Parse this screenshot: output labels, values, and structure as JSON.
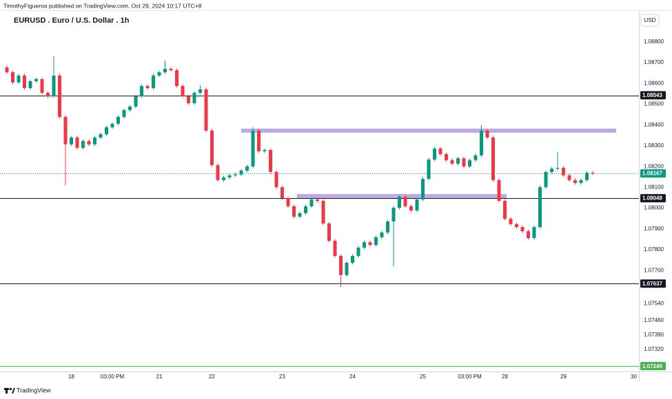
{
  "chart_data": {
    "type": "candlestick",
    "attribution": "TimothyFigueroa published on TradingView.com, Oct 29, 2024 10:17 UTC+8",
    "title": "EURUSD . Euro / U.S. Dollar . 1h",
    "currency": "USD",
    "watermark": "TradingView",
    "up_color": "#089981",
    "down_color": "#f23645",
    "grid": false,
    "categories": [
      null,
      null,
      null,
      null,
      null,
      null,
      null,
      null,
      null,
      null,
      null,
      "18",
      null,
      null,
      null,
      null,
      null,
      null,
      "03:00 PM",
      null,
      null,
      null,
      null,
      null,
      null,
      null,
      "21",
      null,
      null,
      null,
      null,
      null,
      null,
      null,
      null,
      "22",
      null,
      null,
      null,
      null,
      null,
      null,
      null,
      null,
      null,
      null,
      null,
      "23",
      null,
      null,
      null,
      null,
      null,
      null,
      null,
      null,
      null,
      null,
      null,
      "24",
      null,
      null,
      null,
      null,
      null,
      null,
      null,
      null,
      null,
      null,
      null,
      "25",
      null,
      null,
      null,
      null,
      null,
      null,
      null,
      "03:00 PM",
      null,
      null,
      null,
      null,
      null,
      "28",
      null,
      null,
      null,
      null,
      null,
      null,
      null,
      null,
      null,
      "29",
      null,
      null,
      null,
      null,
      null,
      null,
      null,
      null,
      null,
      null,
      null,
      "30"
    ],
    "open": [
      1.08677,
      1.08654,
      1.08605,
      1.08638,
      1.08578,
      1.08611,
      1.08621,
      1.08555,
      1.08538,
      1.08638,
      1.08439,
      1.08307,
      1.0834,
      1.0829,
      1.08323,
      1.08307,
      1.0834,
      1.08356,
      1.08389,
      1.08406,
      1.08439,
      1.08472,
      1.08489,
      1.08538,
      1.08588,
      1.08578,
      1.08638,
      1.08654,
      1.08671,
      1.08664,
      1.08588,
      1.08538,
      1.08505,
      1.08555,
      1.08572,
      1.08373,
      1.08207,
      1.08135,
      1.08148,
      1.08158,
      1.08162,
      1.08181,
      1.08201,
      1.08373,
      1.08274,
      1.0828,
      1.08174,
      1.08101,
      1.08048,
      1.08009,
      1.07959,
      1.07976,
      1.08009,
      1.08042,
      1.08035,
      1.07926,
      1.07843,
      1.0777,
      1.07678,
      1.07737,
      1.0777,
      1.0781,
      1.07836,
      1.07823,
      1.0786,
      1.07883,
      1.07936,
      1.08002,
      1.08055,
      1.08009,
      1.07989,
      1.08042,
      1.08141,
      1.08234,
      1.08287,
      1.0826,
      1.08231,
      1.08214,
      1.0824,
      1.08201,
      1.08231,
      1.08254,
      1.08373,
      1.0834,
      1.08135,
      1.08035,
      1.07949,
      1.07923,
      1.07909,
      1.07889,
      1.07856,
      1.07909,
      1.08101,
      1.08174,
      1.0819,
      1.08194,
      1.08158,
      1.08135,
      1.08121,
      1.08135,
      1.0817,
      null,
      null,
      null,
      null,
      null,
      null,
      null
    ],
    "high": [
      1.08685,
      1.08662,
      1.08646,
      1.08646,
      1.08619,
      1.08629,
      1.08629,
      1.08563,
      1.0873,
      1.08646,
      1.08447,
      1.08348,
      1.08348,
      1.08331,
      1.08331,
      1.08348,
      1.08364,
      1.08397,
      1.08414,
      1.08447,
      1.0848,
      1.08497,
      1.08546,
      1.08596,
      1.08596,
      1.08646,
      1.08662,
      1.0871,
      1.08679,
      1.08672,
      1.08596,
      1.08546,
      1.08563,
      1.0859,
      1.0858,
      1.08381,
      1.08215,
      1.08156,
      1.08166,
      1.0817,
      1.08189,
      1.08209,
      1.0839,
      1.08381,
      1.08288,
      1.08288,
      1.08182,
      1.08109,
      1.08056,
      1.08017,
      1.07984,
      1.08017,
      1.0805,
      1.0805,
      1.08043,
      1.07934,
      1.07851,
      1.07778,
      1.07745,
      1.07778,
      1.07818,
      1.07844,
      1.07844,
      1.07868,
      1.07891,
      1.07944,
      1.0801,
      1.08063,
      1.08063,
      1.08017,
      1.0805,
      1.08149,
      1.08242,
      1.08295,
      1.08295,
      1.08268,
      1.08239,
      1.08248,
      1.08248,
      1.08239,
      1.08262,
      1.084,
      1.08381,
      1.08348,
      1.08143,
      1.08043,
      1.07957,
      1.07931,
      1.07917,
      1.07897,
      1.07917,
      1.08109,
      1.08182,
      1.08198,
      1.0827,
      1.08202,
      1.08166,
      1.08143,
      1.08143,
      1.08178,
      1.08178,
      null,
      null,
      null,
      null,
      null,
      null,
      null
    ],
    "low": [
      1.08646,
      1.08597,
      1.08597,
      1.0857,
      1.0857,
      1.08603,
      1.08547,
      1.0853,
      1.0853,
      1.08431,
      1.0811,
      1.08299,
      1.08282,
      1.08282,
      1.08299,
      1.08299,
      1.08332,
      1.08348,
      1.08381,
      1.08398,
      1.08431,
      1.08464,
      1.08481,
      1.0853,
      1.0857,
      1.0857,
      1.0863,
      1.08646,
      1.08656,
      1.0858,
      1.0853,
      1.08497,
      1.08497,
      1.08547,
      1.08365,
      1.08199,
      1.08127,
      1.08127,
      1.0814,
      1.0815,
      1.08154,
      1.08173,
      1.08193,
      1.08266,
      1.08266,
      1.08166,
      1.08093,
      1.0804,
      1.08001,
      1.07951,
      1.07951,
      1.07968,
      1.08001,
      1.08027,
      1.07918,
      1.07835,
      1.07762,
      1.0762,
      1.0767,
      1.07729,
      1.07762,
      1.07802,
      1.07815,
      1.07815,
      1.07852,
      1.07875,
      1.0772,
      1.07994,
      1.08001,
      1.07981,
      1.07981,
      1.08034,
      1.08133,
      1.08226,
      1.08252,
      1.08223,
      1.08206,
      1.08206,
      1.08193,
      1.08193,
      1.08223,
      1.08246,
      1.08332,
      1.08127,
      1.08027,
      1.07941,
      1.07915,
      1.07901,
      1.07881,
      1.07848,
      1.07848,
      1.07901,
      1.08093,
      1.08166,
      1.08182,
      1.0815,
      1.08127,
      1.08113,
      1.08113,
      1.08127,
      1.08159,
      null,
      null,
      null,
      null,
      null,
      null,
      null
    ],
    "close": [
      1.08654,
      1.08605,
      1.08638,
      1.08578,
      1.08611,
      1.08621,
      1.08555,
      1.08538,
      1.08638,
      1.08439,
      1.08307,
      1.0834,
      1.0829,
      1.08323,
      1.08307,
      1.0834,
      1.08356,
      1.08389,
      1.08406,
      1.08439,
      1.08472,
      1.08489,
      1.08538,
      1.08588,
      1.08578,
      1.08638,
      1.08654,
      1.08671,
      1.08664,
      1.08588,
      1.08538,
      1.08505,
      1.08555,
      1.08572,
      1.08373,
      1.08207,
      1.08135,
      1.08148,
      1.08158,
      1.08162,
      1.08181,
      1.08201,
      1.08373,
      1.08274,
      1.0828,
      1.08174,
      1.08101,
      1.08048,
      1.08009,
      1.07959,
      1.07976,
      1.08009,
      1.08042,
      1.08035,
      1.07926,
      1.07843,
      1.0777,
      1.07678,
      1.07737,
      1.0777,
      1.0781,
      1.07836,
      1.07823,
      1.0786,
      1.07883,
      1.07936,
      1.08002,
      1.08055,
      1.08009,
      1.07989,
      1.08042,
      1.08141,
      1.08234,
      1.08287,
      1.0826,
      1.08231,
      1.08214,
      1.0824,
      1.08201,
      1.08231,
      1.08254,
      1.08373,
      1.0834,
      1.08135,
      1.08035,
      1.07949,
      1.07923,
      1.07909,
      1.07889,
      1.07856,
      1.07909,
      1.08101,
      1.08174,
      1.0819,
      1.08194,
      1.08158,
      1.08135,
      1.08121,
      1.08135,
      1.0817,
      1.08167,
      null,
      null,
      null,
      null,
      null,
      null,
      null
    ],
    "ylim": [
      1.07214,
      1.08952
    ],
    "yticks": [
      {
        "value": 1.088,
        "label": "1.08800"
      },
      {
        "value": 1.087,
        "label": "1.08700"
      },
      {
        "value": 1.086,
        "label": "1.08600"
      },
      {
        "value": 1.085,
        "label": "1.08500"
      },
      {
        "value": 1.084,
        "label": "1.08400"
      },
      {
        "value": 1.083,
        "label": "1.08300"
      },
      {
        "value": 1.082,
        "label": "1.08200"
      },
      {
        "value": 1.081,
        "label": "1.08100"
      },
      {
        "value": 1.08,
        "label": "1.08000"
      },
      {
        "value": 1.079,
        "label": "1.07900"
      },
      {
        "value": 1.078,
        "label": "1.07800"
      },
      {
        "value": 1.077,
        "label": "1.07700"
      },
      {
        "value": 1.0754,
        "label": "1.07540"
      },
      {
        "value": 1.0746,
        "label": "1.07460"
      },
      {
        "value": 1.0739,
        "label": "1.07390"
      },
      {
        "value": 1.0732,
        "label": "1.07320"
      }
    ],
    "levels": [
      1.08543,
      1.08048,
      1.07637
    ],
    "level_color": "#131722",
    "last_price": 1.08167,
    "last_price_color": "#089981",
    "lower_line": {
      "value": 1.0724,
      "label": "1.07240"
    },
    "lower_line_color": "#4caf50",
    "zones": [
      {
        "low": 1.08363,
        "high": 1.08383
      },
      {
        "low": 1.08048,
        "high": 1.08068
      }
    ],
    "zone_color": "#b39ddb"
  }
}
